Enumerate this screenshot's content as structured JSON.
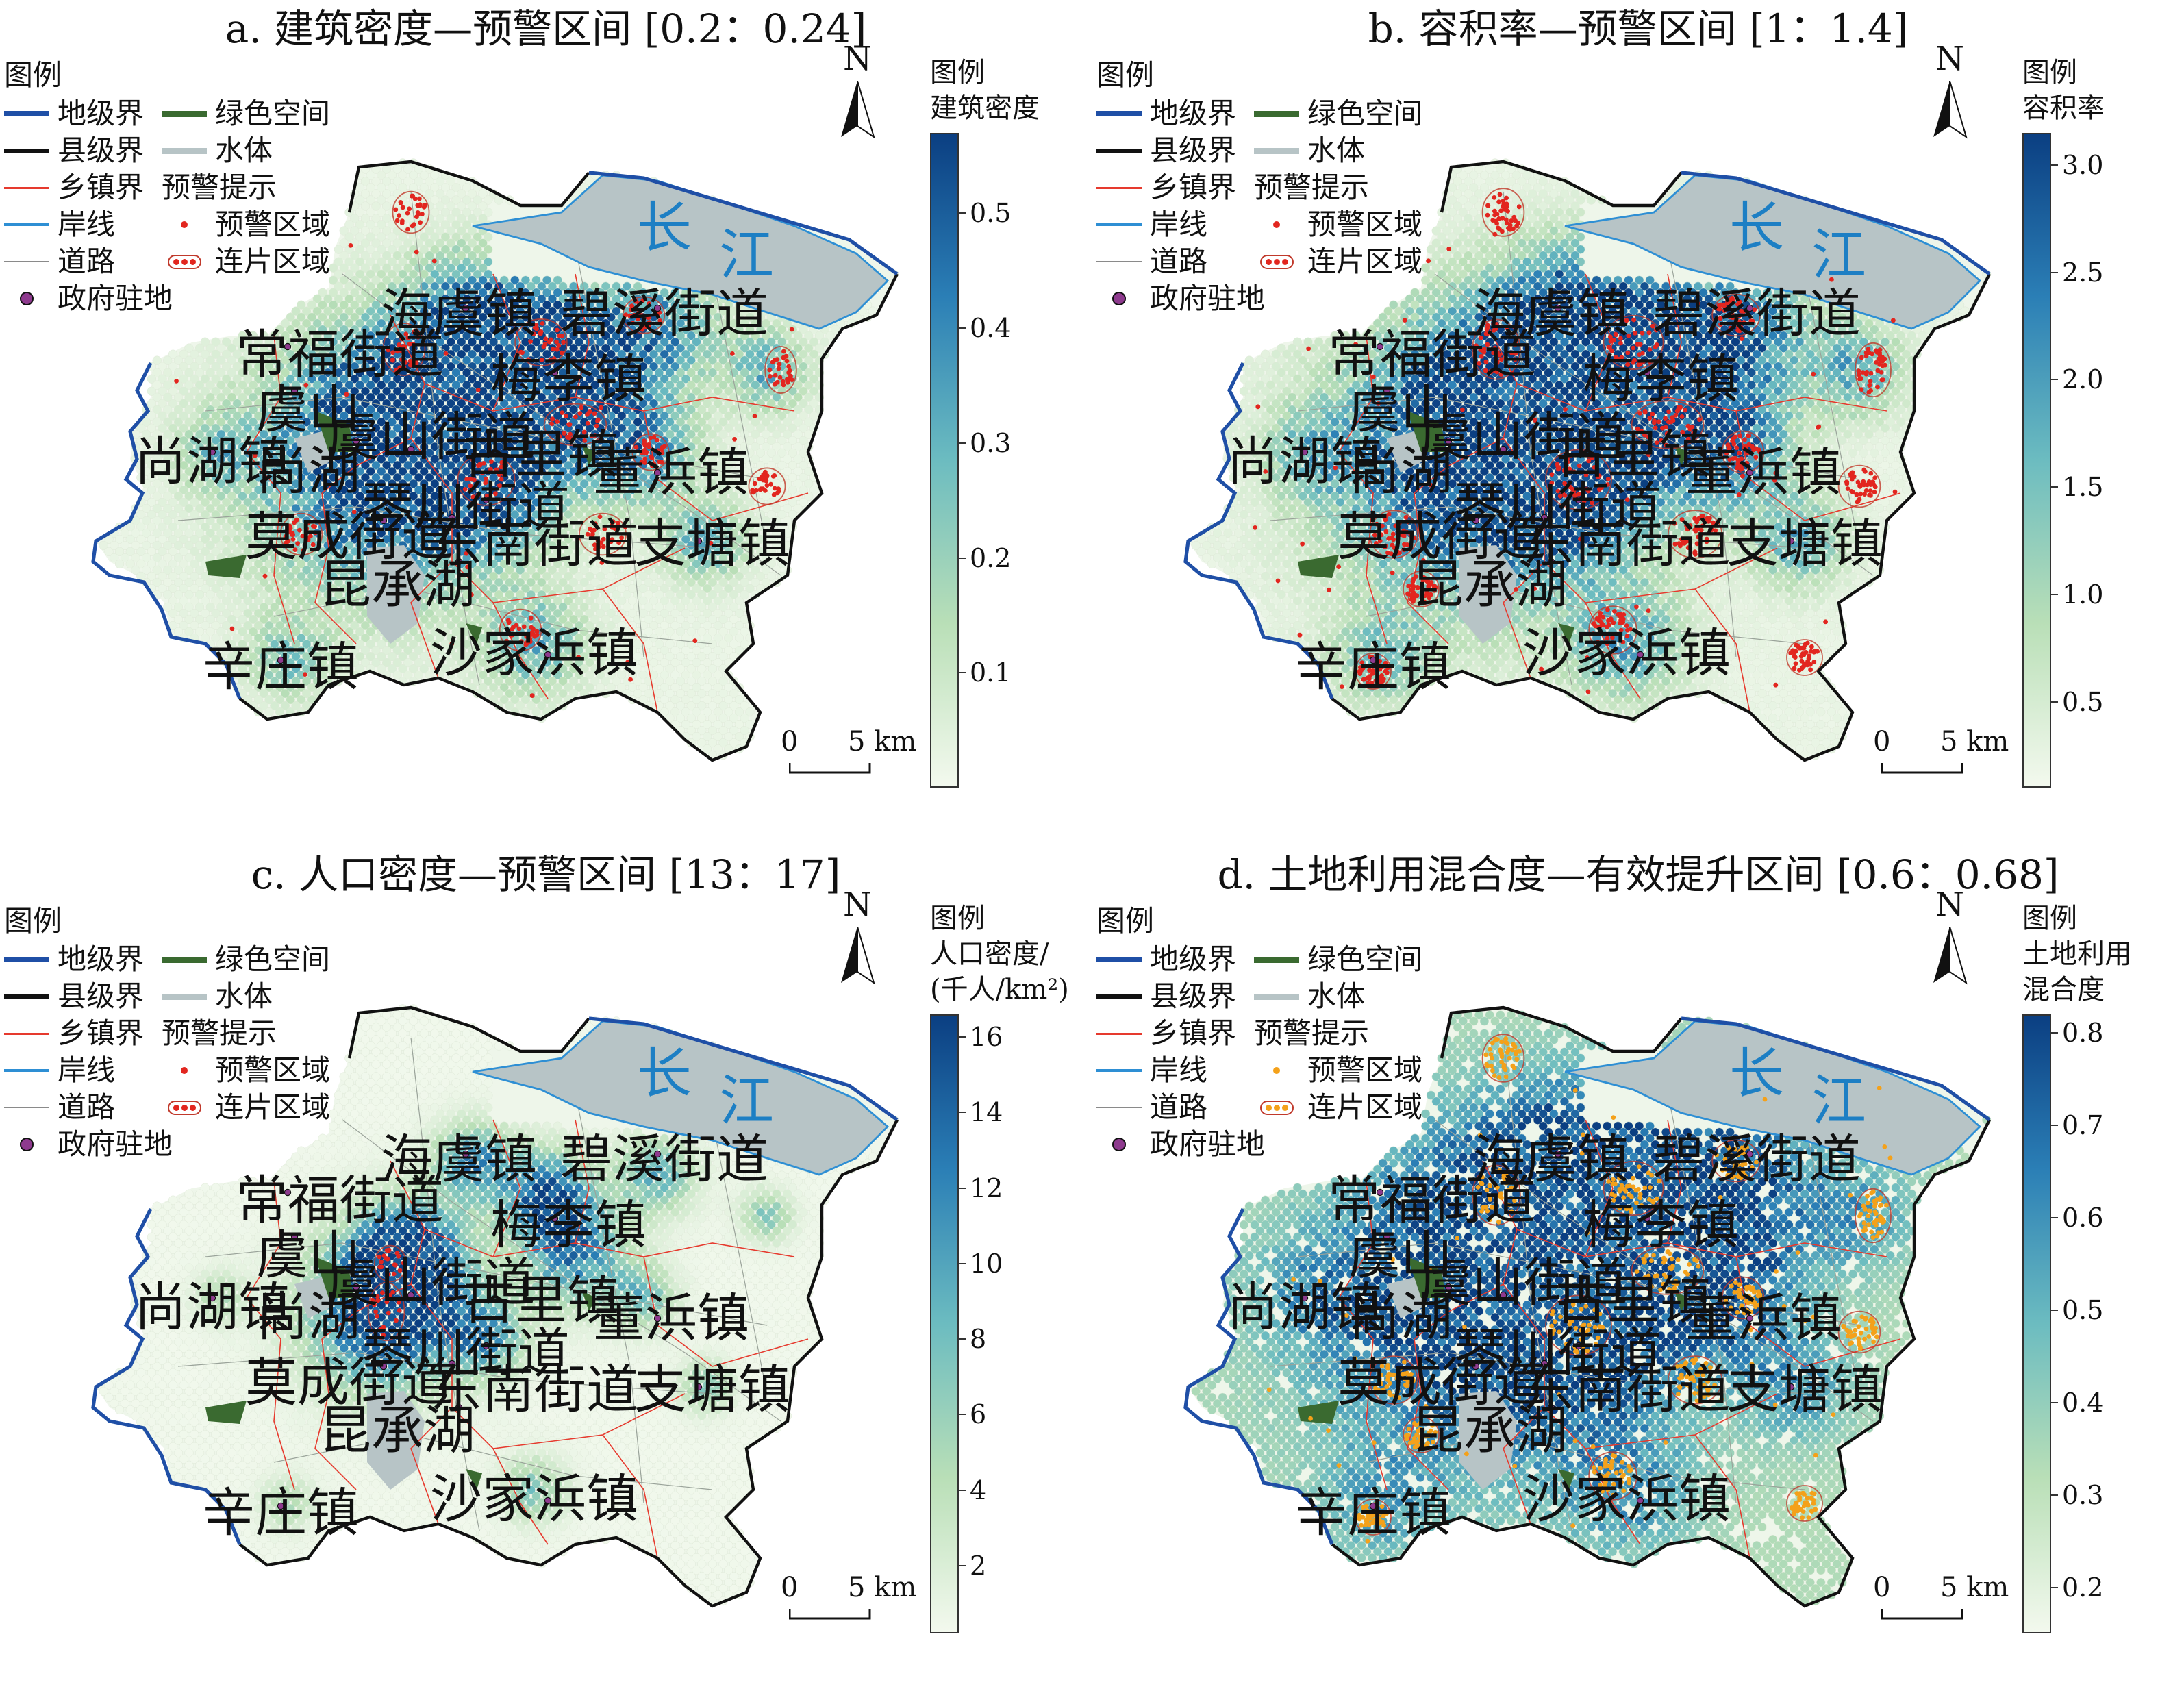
{
  "legend": {
    "title": "图例",
    "prefecture_boundary": "地级界",
    "county_boundary": "县级界",
    "township_boundary": "乡镇界",
    "shoreline": "岸线",
    "road": "道路",
    "government_seat": "政府驻地",
    "green_space": "绿色空间",
    "water_body": "水体",
    "warning_hint": "预警提示",
    "warning_area": "预警区域",
    "contiguous_area": "连片区域"
  },
  "north_label": "N",
  "scale_bar": {
    "start": "0",
    "end": "5 km"
  },
  "place_names": {
    "haiyu": "海虞镇",
    "bixi": "碧溪街道",
    "changfu": "常福街道",
    "meili": "梅李镇",
    "yushan": "虞山",
    "yushan_jiedao": "虞山街道",
    "shanghu": "尚湖",
    "shanghu_zhen": "尚湖镇",
    "guli": "古里镇",
    "dongbang": "董浜镇",
    "qinchuan": "琴川街道",
    "mocheng": "莫成街道",
    "dongnan": "东南街道",
    "zhitang": "支塘镇",
    "kuncheng": "昆承湖",
    "shajiabang": "沙家浜镇",
    "xinzhuang": "辛庄镇",
    "chang": "长",
    "jiang": "江"
  },
  "colors": {
    "warning_red": "#e2261f",
    "warning_orange": "#f4a11a",
    "prefecture_line": "#1f4fa6",
    "county_line": "#111111",
    "township_line": "#e63a2e",
    "shoreline": "#2e8fd4",
    "green_space": "#3a6a30",
    "water": "#b7c4c6",
    "ramp_low": "#f3f9ee",
    "ramp_high": "#0b3f82"
  },
  "panels": [
    {
      "id": "a",
      "title": "a. 建筑密度—预警区间 [0.2：0.24]",
      "colorbar_title_lines": [
        "图例",
        "建筑密度"
      ],
      "colorbar_ticks": [
        "0.1",
        "0.2",
        "0.3",
        "0.4",
        "0.5"
      ],
      "colorbar_tick_values": [
        0.1,
        0.2,
        0.3,
        0.4,
        0.5
      ],
      "colorbar_range": [
        0.0,
        0.57
      ],
      "warning_color": "#e2261f",
      "warning_level": "medium"
    },
    {
      "id": "b",
      "title": "b. 容积率—预警区间 [1：1.4]",
      "colorbar_title_lines": [
        "图例",
        "容积率"
      ],
      "colorbar_ticks": [
        "0.5",
        "1.0",
        "1.5",
        "2.0",
        "2.5",
        "3.0"
      ],
      "colorbar_tick_values": [
        0.5,
        1.0,
        1.5,
        2.0,
        2.5,
        3.0
      ],
      "colorbar_range": [
        0.1,
        3.15
      ],
      "warning_color": "#e2261f",
      "warning_level": "high"
    },
    {
      "id": "c",
      "title": "c. 人口密度—预警区间 [13：17]",
      "colorbar_title_lines": [
        "图例",
        "人口密度/",
        "(千人/km²)"
      ],
      "colorbar_ticks": [
        "2",
        "4",
        "6",
        "8",
        "10",
        "12",
        "14",
        "16"
      ],
      "colorbar_tick_values": [
        2,
        4,
        6,
        8,
        10,
        12,
        14,
        16
      ],
      "colorbar_range": [
        0.2,
        16.6
      ],
      "warning_color": "#e2261f",
      "warning_level": "low"
    },
    {
      "id": "d",
      "title": "d. 土地利用混合度—有效提升区间 [0.6：0.68]",
      "colorbar_title_lines": [
        "图例",
        "土地利用",
        "混合度"
      ],
      "colorbar_ticks": [
        "0.2",
        "0.3",
        "0.4",
        "0.5",
        "0.6",
        "0.7",
        "0.8"
      ],
      "colorbar_tick_values": [
        0.2,
        0.3,
        0.4,
        0.5,
        0.6,
        0.7,
        0.8
      ],
      "colorbar_range": [
        0.15,
        0.82
      ],
      "warning_color": "#f4a11a",
      "warning_level": "high"
    }
  ]
}
